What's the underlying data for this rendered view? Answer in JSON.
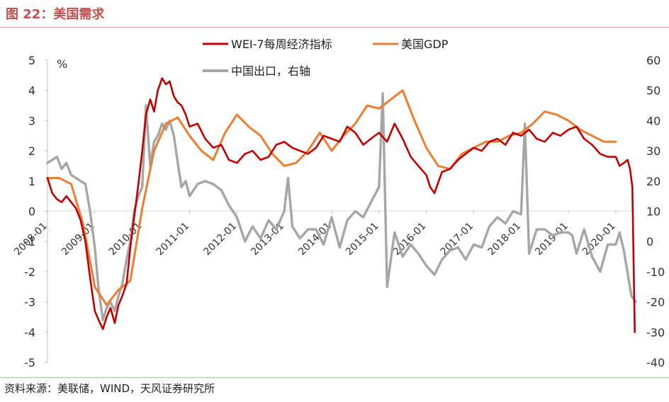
{
  "header": {
    "title": "图 22：美国需求"
  },
  "footer": {
    "source": "资料来源：美联储，WIND，天风证券研究所"
  },
  "colors": {
    "wei": "#c00000",
    "gdp": "#ed7d31",
    "export": "#a6a6a6",
    "accent": "#c0504d"
  },
  "chart_data": {
    "type": "line",
    "ylabel": "%",
    "ylim": [
      -5,
      5
    ],
    "y2lim": [
      -40,
      60
    ],
    "yticks": [
      -5,
      -4,
      -3,
      -2,
      -1,
      0,
      1,
      2,
      3,
      4,
      5
    ],
    "y2ticks": [
      -40,
      -30,
      -20,
      -10,
      0,
      10,
      20,
      30,
      40,
      50,
      60
    ],
    "xlim": [
      2008.0,
      2020.42
    ],
    "xticks": [
      "2008-01",
      "2009-01",
      "2010-01",
      "2011-01",
      "2012-01",
      "2013-01",
      "2014-01",
      "2015-01",
      "2016-01",
      "2017-01",
      "2018-01",
      "2019-01",
      "2020-01"
    ],
    "grid": false,
    "legend": "top",
    "series": [
      {
        "name": "WEI-7每周经济指标",
        "axis": "left",
        "x": [
          2008.0,
          2008.1,
          2008.2,
          2008.3,
          2008.4,
          2008.5,
          2008.6,
          2008.7,
          2008.8,
          2008.9,
          2009.0,
          2009.08,
          2009.17,
          2009.25,
          2009.33,
          2009.42,
          2009.5,
          2009.58,
          2009.67,
          2009.75,
          2009.83,
          2009.92,
          2010.0,
          2010.08,
          2010.17,
          2010.25,
          2010.33,
          2010.42,
          2010.5,
          2010.58,
          2010.67,
          2010.75,
          2010.83,
          2010.92,
          2011.0,
          2011.17,
          2011.33,
          2011.5,
          2011.67,
          2011.83,
          2012.0,
          2012.17,
          2012.33,
          2012.5,
          2012.67,
          2012.83,
          2013.0,
          2013.17,
          2013.33,
          2013.5,
          2013.67,
          2013.83,
          2014.0,
          2014.17,
          2014.33,
          2014.5,
          2014.67,
          2014.83,
          2015.0,
          2015.17,
          2015.33,
          2015.5,
          2015.67,
          2015.83,
          2016.0,
          2016.08,
          2016.17,
          2016.33,
          2016.5,
          2016.67,
          2016.83,
          2017.0,
          2017.17,
          2017.33,
          2017.5,
          2017.67,
          2017.83,
          2018.0,
          2018.17,
          2018.33,
          2018.5,
          2018.67,
          2018.83,
          2019.0,
          2019.17,
          2019.33,
          2019.5,
          2019.67,
          2019.83,
          2020.0,
          2020.08,
          2020.17,
          2020.25,
          2020.3,
          2020.35,
          2020.4
        ],
        "values": [
          1.1,
          0.6,
          0.4,
          0.3,
          0.5,
          0.3,
          0.1,
          -0.3,
          -1.0,
          -2.2,
          -3.3,
          -3.6,
          -3.9,
          -3.5,
          -3.2,
          -3.7,
          -3.1,
          -2.8,
          -2.4,
          -1.2,
          -0.2,
          0.9,
          2.0,
          3.2,
          3.7,
          3.3,
          4.0,
          4.4,
          4.2,
          4.3,
          3.8,
          3.6,
          3.5,
          3.2,
          2.8,
          2.9,
          2.4,
          2.1,
          2.2,
          1.7,
          1.6,
          1.9,
          2.0,
          1.7,
          1.8,
          2.2,
          2.3,
          2.1,
          2.0,
          1.9,
          2.1,
          2.5,
          2.4,
          2.3,
          2.8,
          2.6,
          2.2,
          2.4,
          2.6,
          2.3,
          2.9,
          2.4,
          1.8,
          1.5,
          1.2,
          0.8,
          0.6,
          1.3,
          1.4,
          1.7,
          1.9,
          2.1,
          2.0,
          2.3,
          2.4,
          2.2,
          2.6,
          2.5,
          2.7,
          2.4,
          2.3,
          2.6,
          2.5,
          2.7,
          2.8,
          2.4,
          2.2,
          1.9,
          1.8,
          1.8,
          1.5,
          1.6,
          1.7,
          1.4,
          0.8,
          -4.0
        ]
      },
      {
        "name": "美国GDP",
        "axis": "left",
        "x": [
          2008.0,
          2008.25,
          2008.5,
          2008.75,
          2009.0,
          2009.25,
          2009.5,
          2009.75,
          2010.0,
          2010.25,
          2010.5,
          2010.75,
          2011.0,
          2011.25,
          2011.5,
          2011.75,
          2012.0,
          2012.25,
          2012.5,
          2012.75,
          2013.0,
          2013.25,
          2013.5,
          2013.75,
          2014.0,
          2014.25,
          2014.5,
          2014.75,
          2015.0,
          2015.25,
          2015.5,
          2015.75,
          2016.0,
          2016.25,
          2016.5,
          2016.75,
          2017.0,
          2017.25,
          2017.5,
          2017.75,
          2018.0,
          2018.25,
          2018.5,
          2018.75,
          2019.0,
          2019.25,
          2019.5,
          2019.75,
          2020.0
        ],
        "values": [
          1.1,
          1.1,
          0.9,
          -0.4,
          -2.5,
          -3.1,
          -2.6,
          -2.3,
          0.1,
          2.0,
          2.9,
          3.1,
          2.5,
          2.0,
          1.7,
          2.6,
          3.2,
          2.8,
          2.5,
          1.9,
          1.5,
          1.6,
          2.0,
          2.6,
          2.0,
          2.5,
          2.9,
          3.5,
          3.4,
          3.7,
          4.0,
          3.0,
          2.1,
          1.5,
          1.4,
          1.9,
          2.1,
          2.3,
          2.3,
          2.5,
          2.6,
          2.9,
          3.3,
          3.2,
          3.0,
          2.7,
          2.5,
          2.3,
          2.3
        ]
      },
      {
        "name": "中国出口，右轴",
        "axis": "right",
        "x": [
          2008.0,
          2008.1,
          2008.2,
          2008.3,
          2008.4,
          2008.5,
          2008.6,
          2008.7,
          2008.8,
          2008.9,
          2009.0,
          2009.08,
          2009.17,
          2009.25,
          2009.33,
          2009.42,
          2009.5,
          2009.58,
          2009.67,
          2009.75,
          2009.83,
          2009.92,
          2010.0,
          2010.08,
          2010.17,
          2010.25,
          2010.33,
          2010.42,
          2010.5,
          2010.58,
          2010.67,
          2010.75,
          2010.83,
          2010.92,
          2011.0,
          2011.17,
          2011.33,
          2011.5,
          2011.67,
          2011.83,
          2012.0,
          2012.17,
          2012.33,
          2012.5,
          2012.67,
          2012.83,
          2013.0,
          2013.08,
          2013.17,
          2013.33,
          2013.5,
          2013.67,
          2013.83,
          2014.0,
          2014.17,
          2014.33,
          2014.5,
          2014.67,
          2014.83,
          2015.0,
          2015.08,
          2015.17,
          2015.33,
          2015.5,
          2015.67,
          2015.83,
          2016.0,
          2016.17,
          2016.33,
          2016.5,
          2016.67,
          2016.83,
          2017.0,
          2017.17,
          2017.33,
          2017.5,
          2017.67,
          2017.83,
          2018.0,
          2018.08,
          2018.17,
          2018.33,
          2018.5,
          2018.67,
          2018.83,
          2019.0,
          2019.08,
          2019.17,
          2019.33,
          2019.5,
          2019.67,
          2019.83,
          2020.0,
          2020.08,
          2020.17,
          2020.33,
          2020.42
        ],
        "values": [
          26,
          27,
          28,
          24,
          26,
          22,
          21,
          20,
          19,
          10,
          -2,
          -16,
          -26,
          -22,
          -20,
          -23,
          -18,
          -14,
          -6,
          0,
          10,
          15,
          18,
          45,
          25,
          33,
          35,
          39,
          37,
          40,
          35,
          26,
          18,
          20,
          15,
          19,
          20,
          19,
          17,
          12,
          8,
          0,
          5,
          1,
          7,
          4,
          10,
          21,
          5,
          1,
          4,
          4,
          -1,
          8,
          -2,
          7,
          10,
          8,
          13,
          18,
          49,
          -15,
          3,
          -5,
          -1,
          -4,
          -8,
          -11,
          -6,
          -3,
          -2,
          -6,
          -1,
          -2,
          5,
          8,
          6,
          10,
          9,
          39,
          -4,
          4,
          4,
          2,
          3,
          3,
          2,
          -4,
          4,
          -5,
          -10,
          -1,
          -1,
          3,
          -3,
          -18,
          -20
        ]
      }
    ]
  }
}
